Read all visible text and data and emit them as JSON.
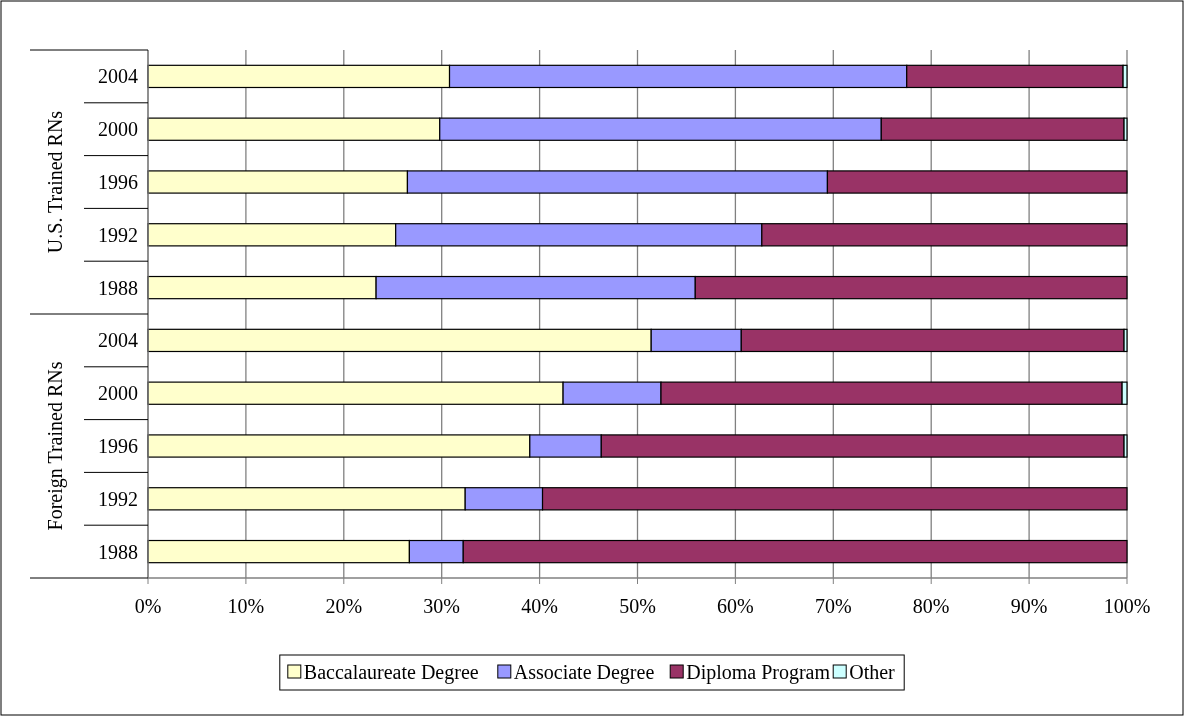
{
  "chart_data": {
    "type": "bar",
    "orientation": "horizontal",
    "stacked": true,
    "categories": [
      "2004",
      "2000",
      "1996",
      "1992",
      "1988",
      "2004",
      "2000",
      "1996",
      "1992",
      "1988"
    ],
    "series": [
      {
        "name": "Baccalaureate Degree",
        "color": "#ffffcc",
        "values": [
          30.8,
          29.8,
          26.5,
          25.3,
          23.3,
          51.4,
          42.4,
          39.0,
          32.4,
          26.7
        ]
      },
      {
        "name": "Associate Degree",
        "color": "#9999ff",
        "values": [
          46.7,
          45.1,
          42.9,
          37.4,
          32.6,
          9.2,
          10.0,
          7.3,
          7.9,
          5.5
        ]
      },
      {
        "name": "Diploma Program",
        "color": "#993366",
        "values": [
          22.1,
          24.8,
          30.6,
          37.3,
          44.1,
          39.1,
          47.1,
          53.4,
          59.7,
          67.8
        ]
      },
      {
        "name": "Other",
        "color": "#ccffff",
        "values": [
          0.4,
          0.3,
          0,
          0,
          0,
          0.3,
          0.5,
          0.3,
          0,
          0
        ]
      }
    ],
    "xlim": [
      0,
      100
    ],
    "xticks": [
      {
        "value": 0,
        "label": "0%"
      },
      {
        "value": 10,
        "label": "10%"
      },
      {
        "value": 20,
        "label": "20%"
      },
      {
        "value": 30,
        "label": "30%"
      },
      {
        "value": 40,
        "label": "40%"
      },
      {
        "value": 50,
        "label": "50%"
      },
      {
        "value": 60,
        "label": "60%"
      },
      {
        "value": 70,
        "label": "70%"
      },
      {
        "value": 80,
        "label": "80%"
      },
      {
        "value": 90,
        "label": "90%"
      },
      {
        "value": 100,
        "label": "100%"
      }
    ],
    "annotations": [
      "U.S. Trained RNs",
      "Foreign Trained RNs"
    ],
    "grid": "x",
    "legend": "bottom"
  }
}
